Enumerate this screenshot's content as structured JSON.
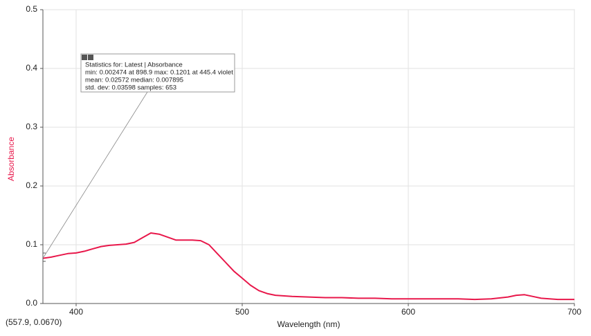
{
  "chart_data": {
    "type": "line",
    "x_label": "Wavelength (nm)",
    "y_label": "Absorbance",
    "x": [
      380,
      385,
      390,
      395,
      400,
      405,
      410,
      415,
      420,
      425,
      430,
      435,
      440,
      445,
      450,
      455,
      460,
      465,
      470,
      475,
      480,
      485,
      490,
      495,
      500,
      505,
      510,
      515,
      520,
      530,
      540,
      550,
      560,
      570,
      580,
      590,
      600,
      610,
      620,
      630,
      640,
      650,
      660,
      665,
      670,
      675,
      680,
      690,
      700
    ],
    "series": [
      {
        "name": "Absorbance",
        "color": "#e8174a",
        "values": [
          0.077,
          0.079,
          0.082,
          0.085,
          0.086,
          0.089,
          0.093,
          0.097,
          0.099,
          0.1,
          0.101,
          0.104,
          0.112,
          0.12,
          0.118,
          0.113,
          0.108,
          0.108,
          0.108,
          0.107,
          0.1,
          0.085,
          0.07,
          0.055,
          0.043,
          0.031,
          0.022,
          0.017,
          0.014,
          0.012,
          0.011,
          0.01,
          0.01,
          0.009,
          0.009,
          0.008,
          0.008,
          0.008,
          0.008,
          0.008,
          0.007,
          0.008,
          0.011,
          0.014,
          0.015,
          0.012,
          0.009,
          0.007,
          0.007
        ]
      }
    ],
    "xlim": [
      380,
      700
    ],
    "xticks": [
      400,
      500,
      600,
      700
    ],
    "ylim": [
      0,
      0.5
    ],
    "yticks": [
      {
        "value": 0,
        "label": "0.0"
      },
      0.1,
      0.2,
      0.3,
      0.4,
      0.5
    ],
    "grid": true,
    "annotation": {
      "lines": [
        "Statistics for: Latest | Absorbance",
        "min: 0.002474 at 898.9 max: 0.1201 at 445.4 violet",
        "mean: 0.02572 median: 0.007895",
        "std. dev: 0.03598 samples: 653"
      ]
    },
    "cursor_readout": "(557.9, 0.0670)"
  }
}
